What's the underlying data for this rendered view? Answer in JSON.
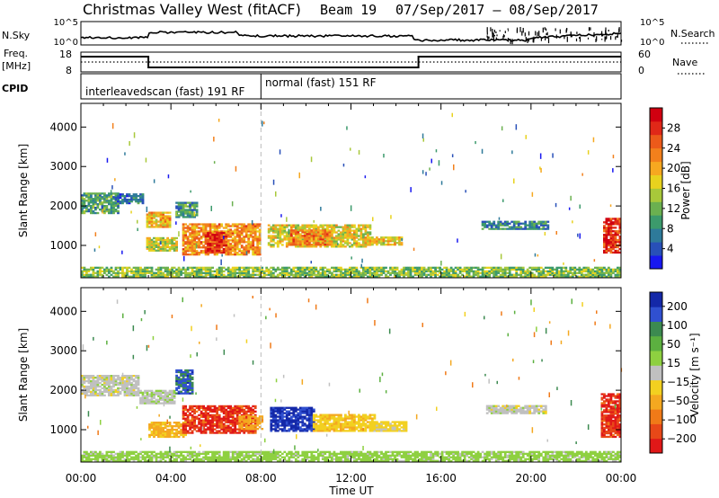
{
  "header": {
    "title": "Christmas Valley West (fitACF)",
    "beam": "Beam 19",
    "dates": "07/Sep/2017 – 08/Sep/2017"
  },
  "side_labels": {
    "nsky": "N.Sky",
    "nsearch": "N.Search",
    "freq": "Freq.",
    "mhz": "[MHz]",
    "nave": "Nave",
    "cpid": "CPID"
  },
  "noise_panel": {
    "left_ticks": [
      "10^5",
      "10^0"
    ],
    "right_ticks": [
      "10^5",
      "10^0"
    ]
  },
  "freq_panel": {
    "left_ticks": [
      "18",
      "8"
    ],
    "right_ticks": [
      "60",
      "0"
    ],
    "step_hours": [
      0,
      3,
      15,
      24
    ],
    "step_levels": [
      "high",
      "low",
      "high"
    ]
  },
  "cpid_segments": [
    {
      "label": "interleavedscan (fast) 191 RF",
      "start_h": 0,
      "end_h": 8
    },
    {
      "label": "normal (fast) 151 RF",
      "start_h": 8,
      "end_h": 24
    }
  ],
  "time_axis": {
    "ticks": [
      "00:00",
      "04:00",
      "08:00",
      "12:00",
      "16:00",
      "20:00",
      "00:00"
    ],
    "xlabel": "Time UT"
  },
  "chart_data": [
    {
      "type": "heatmap",
      "panel": "power",
      "xlabel": "Time UT",
      "ylabel": "Slant Range [km]",
      "x_range_hours": [
        0,
        24
      ],
      "ylim": [
        180,
        4600
      ],
      "y_ticks": [
        1000,
        2000,
        3000,
        4000
      ],
      "colorbar": {
        "label": "Power [dB]",
        "ticks": [
          4,
          8,
          12,
          16,
          20,
          24,
          28
        ],
        "range": [
          0,
          32
        ],
        "colors": [
          "#1818f0",
          "#2850b8",
          "#2e7a9a",
          "#3c9a6c",
          "#6bb050",
          "#a8c83a",
          "#e8d21e",
          "#f6a820",
          "#f2801c",
          "#ec5a1a",
          "#e02818",
          "#d00010"
        ]
      },
      "regions": [
        {
          "t": [
            0.0,
            1.7
          ],
          "r": [
            1800,
            2300
          ],
          "v": 10
        },
        {
          "t": [
            1.5,
            2.8
          ],
          "r": [
            2050,
            2300
          ],
          "v": 7
        },
        {
          "t": [
            2.9,
            4.0
          ],
          "r": [
            1450,
            1850
          ],
          "v": 20
        },
        {
          "t": [
            2.9,
            4.3
          ],
          "r": [
            850,
            1200
          ],
          "v": 16
        },
        {
          "t": [
            4.2,
            5.1
          ],
          "r": [
            1700,
            2100
          ],
          "v": 9
        },
        {
          "t": [
            4.5,
            7.9
          ],
          "r": [
            750,
            1550
          ],
          "v": 22
        },
        {
          "t": [
            5.5,
            6.4
          ],
          "r": [
            800,
            1300
          ],
          "v": 28
        },
        {
          "t": [
            8.3,
            12.8
          ],
          "r": [
            950,
            1500
          ],
          "v": 17
        },
        {
          "t": [
            9.3,
            11.0
          ],
          "r": [
            1000,
            1400
          ],
          "v": 23
        },
        {
          "t": [
            12.5,
            14.2
          ],
          "r": [
            1000,
            1200
          ],
          "v": 18
        },
        {
          "t": [
            17.8,
            20.8
          ],
          "r": [
            1400,
            1600
          ],
          "v": 8
        },
        {
          "t": [
            23.2,
            24.0
          ],
          "r": [
            800,
            1700
          ],
          "v": 28
        },
        {
          "t": [
            0.0,
            24.0
          ],
          "r": [
            190,
            420
          ],
          "v": 13
        }
      ]
    },
    {
      "type": "heatmap",
      "panel": "velocity",
      "xlabel": "Time UT",
      "ylabel": "Slant Range [km]",
      "x_range_hours": [
        0,
        24
      ],
      "ylim": [
        180,
        4600
      ],
      "y_ticks": [
        1000,
        2000,
        3000,
        4000
      ],
      "colorbar": {
        "label": "Velocity [m s⁻¹]",
        "ticks": [
          "200",
          "100",
          "50",
          "15",
          "−15",
          "−50",
          "−100",
          "−200"
        ],
        "colors": [
          "#1428a8",
          "#3050d0",
          "#3c8a50",
          "#5cb040",
          "#8ed040",
          "#c0c0c0",
          "#f2d020",
          "#f4a820",
          "#f07a18",
          "#e84818",
          "#e01818"
        ]
      },
      "regions": [
        {
          "t": [
            0.0,
            2.6
          ],
          "r": [
            1850,
            2350
          ],
          "v": 0
        },
        {
          "t": [
            2.6,
            4.2
          ],
          "r": [
            1650,
            2000
          ],
          "v": 5
        },
        {
          "t": [
            3.0,
            4.6
          ],
          "r": [
            800,
            1200
          ],
          "v": -60
        },
        {
          "t": [
            4.2,
            4.9
          ],
          "r": [
            1900,
            2500
          ],
          "v": 160
        },
        {
          "t": [
            4.5,
            7.7
          ],
          "r": [
            900,
            1600
          ],
          "v": -200
        },
        {
          "t": [
            7.0,
            8.0
          ],
          "r": [
            1000,
            1350
          ],
          "v": -80
        },
        {
          "t": [
            8.4,
            10.3
          ],
          "r": [
            950,
            1550
          ],
          "v": 220
        },
        {
          "t": [
            10.3,
            13.0
          ],
          "r": [
            950,
            1400
          ],
          "v": -40
        },
        {
          "t": [
            12.8,
            14.4
          ],
          "r": [
            950,
            1200
          ],
          "v": -30
        },
        {
          "t": [
            18.0,
            20.7
          ],
          "r": [
            1400,
            1600
          ],
          "v": 0
        },
        {
          "t": [
            23.1,
            24.0
          ],
          "r": [
            800,
            1900
          ],
          "v": -200
        },
        {
          "t": [
            0.0,
            24.0
          ],
          "r": [
            190,
            420
          ],
          "v": 30
        }
      ]
    }
  ]
}
